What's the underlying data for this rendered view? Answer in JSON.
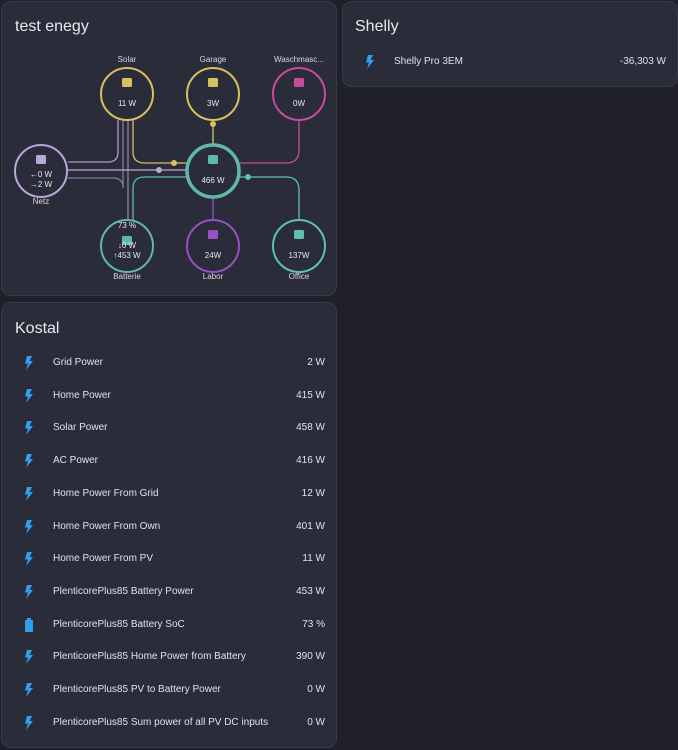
{
  "energy_card": {
    "title": "test enegy",
    "nodes": [
      {
        "name": "Solar",
        "values": [
          "11 W"
        ]
      },
      {
        "name": "Garage",
        "values": [
          "3W"
        ]
      },
      {
        "name": "Waschmasc...",
        "values": [
          "0W"
        ]
      },
      {
        "name": "Netz",
        "values": [
          "←0 W",
          "→2 W"
        ]
      },
      {
        "values": [
          "466 W"
        ]
      },
      {
        "name": "Batterie",
        "values": [
          "73 %",
          "↓0 W",
          "↑453 W"
        ]
      },
      {
        "name": "Labor",
        "values": [
          "24W"
        ]
      },
      {
        "name": "Office",
        "values": [
          "137W"
        ]
      }
    ]
  },
  "kostal_card": {
    "title": "Kostal",
    "rows": [
      {
        "name": "Grid Power",
        "value": "2 W"
      },
      {
        "name": "Home Power",
        "value": "415 W"
      },
      {
        "name": "Solar Power",
        "value": "458 W"
      },
      {
        "name": "AC Power",
        "value": "416 W"
      },
      {
        "name": "Home Power From Grid",
        "value": "12 W"
      },
      {
        "name": "Home Power From Own",
        "value": "401 W"
      },
      {
        "name": "Home Power From PV",
        "value": "11 W"
      },
      {
        "name": "PlenticorePlus85 Battery Power",
        "value": "453 W"
      },
      {
        "name": "PlenticorePlus85 Battery SoC",
        "value": "73 %"
      },
      {
        "name": "PlenticorePlus85 Home Power from Battery",
        "value": "390 W"
      },
      {
        "name": "PlenticorePlus85 PV to Battery Power",
        "value": "0 W"
      },
      {
        "name": "PlenticorePlus85 Sum power of all PV DC inputs",
        "value": "0 W"
      }
    ]
  },
  "shelly_card": {
    "title": "Shelly",
    "rows": [
      {
        "name": "Shelly Pro 3EM",
        "value": "-36,303 W"
      }
    ]
  }
}
